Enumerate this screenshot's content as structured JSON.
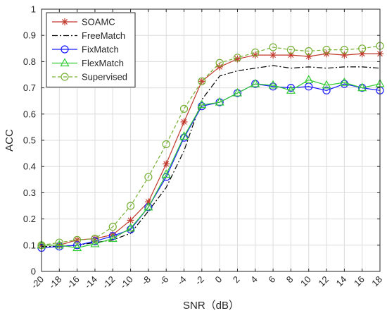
{
  "chart_data": {
    "type": "line",
    "title": "",
    "xlabel": "SNR（dB）",
    "ylabel": "ACC",
    "x": [
      -20,
      -18,
      -16,
      -14,
      -12,
      -10,
      -8,
      -6,
      -4,
      -2,
      0,
      2,
      4,
      6,
      8,
      10,
      12,
      14,
      16,
      18
    ],
    "xlim": [
      -20,
      18
    ],
    "ylim": [
      0,
      1
    ],
    "x_ticks": [
      "-20",
      "-18",
      "-16",
      "-14",
      "-12",
      "-10",
      "-8",
      "-6",
      "-4",
      "-2",
      "0",
      "2",
      "4",
      "6",
      "8",
      "10",
      "12",
      "14",
      "16",
      "18"
    ],
    "y_ticks": [
      "0",
      "0.1",
      "0.2",
      "0.3",
      "0.4",
      "0.5",
      "0.6",
      "0.7",
      "0.8",
      "0.9",
      "1"
    ],
    "grid": true,
    "legend_position": "top-left",
    "series": [
      {
        "name": "SOAMC",
        "color": "#c0392b",
        "dash": "solid",
        "marker": "asterisk",
        "values": [
          0.1,
          0.1,
          0.12,
          0.125,
          0.14,
          0.195,
          0.265,
          0.41,
          0.57,
          0.725,
          0.78,
          0.81,
          0.825,
          0.825,
          0.825,
          0.82,
          0.83,
          0.825,
          0.83,
          0.83
        ]
      },
      {
        "name": "FreeMatch",
        "color": "#000000",
        "dash": "dashdot",
        "marker": "none",
        "values": [
          0.095,
          0.095,
          0.1,
          0.11,
          0.12,
          0.145,
          0.23,
          0.32,
          0.46,
          0.655,
          0.745,
          0.765,
          0.775,
          0.785,
          0.775,
          0.78,
          0.775,
          0.78,
          0.78,
          0.775
        ]
      },
      {
        "name": "FixMatch",
        "color": "#1a1aff",
        "dash": "solid",
        "marker": "circle",
        "values": [
          0.09,
          0.095,
          0.1,
          0.115,
          0.135,
          0.16,
          0.245,
          0.36,
          0.51,
          0.63,
          0.645,
          0.68,
          0.715,
          0.705,
          0.7,
          0.705,
          0.69,
          0.715,
          0.7,
          0.69
        ]
      },
      {
        "name": "FlexMatch",
        "color": "#33cc33",
        "dash": "solid",
        "marker": "triangle",
        "values": [
          0.1,
          0.1,
          0.09,
          0.105,
          0.125,
          0.165,
          0.245,
          0.37,
          0.515,
          0.635,
          0.645,
          0.68,
          0.715,
          0.71,
          0.69,
          0.73,
          0.71,
          0.72,
          0.7,
          0.715
        ]
      },
      {
        "name": "Supervised",
        "color": "#77b035",
        "dash": "dashed",
        "marker": "circle",
        "values": [
          0.1,
          0.11,
          0.12,
          0.125,
          0.17,
          0.25,
          0.36,
          0.485,
          0.62,
          0.725,
          0.795,
          0.815,
          0.835,
          0.855,
          0.845,
          0.84,
          0.845,
          0.845,
          0.85,
          0.86
        ]
      }
    ]
  }
}
